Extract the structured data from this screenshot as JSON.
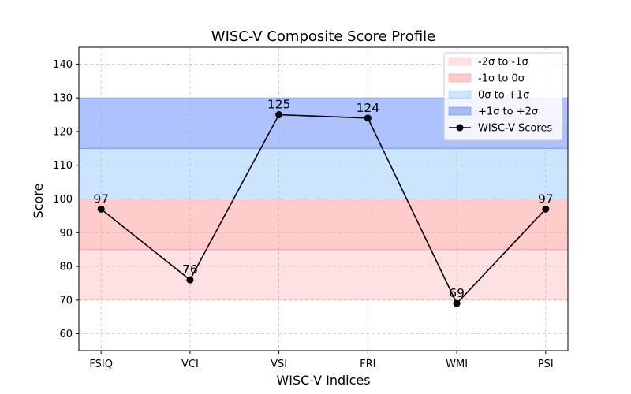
{
  "chart_data": {
    "type": "line",
    "title": "WISC-V Composite Score Profile",
    "xlabel": "WISC-V Indices",
    "ylabel": "Score",
    "categories": [
      "FSIQ",
      "VCI",
      "VSI",
      "FRI",
      "WMI",
      "PSI"
    ],
    "series": [
      {
        "name": "WISC-V Scores",
        "values": [
          97,
          76,
          125,
          124,
          69,
          97
        ],
        "color": "#000000",
        "marker": "circle"
      }
    ],
    "ylim": [
      55,
      145
    ],
    "yticks": [
      60,
      70,
      80,
      90,
      100,
      110,
      120,
      130,
      140
    ],
    "bands": [
      {
        "label": "-2σ to -1σ",
        "from": 70,
        "to": 85,
        "color": "#ffb3b8",
        "opacity": 0.4
      },
      {
        "label": "-1σ to 0σ",
        "from": 85,
        "to": 100,
        "color": "#ff8080",
        "opacity": 0.4
      },
      {
        "label": "0σ to +1σ",
        "from": 100,
        "to": 115,
        "color": "#80bfff",
        "opacity": 0.4
      },
      {
        "label": "+1σ to +2σ",
        "from": 115,
        "to": 130,
        "color": "#3366ff",
        "opacity": 0.4
      }
    ],
    "grid": true,
    "legend_position": "top-right"
  }
}
